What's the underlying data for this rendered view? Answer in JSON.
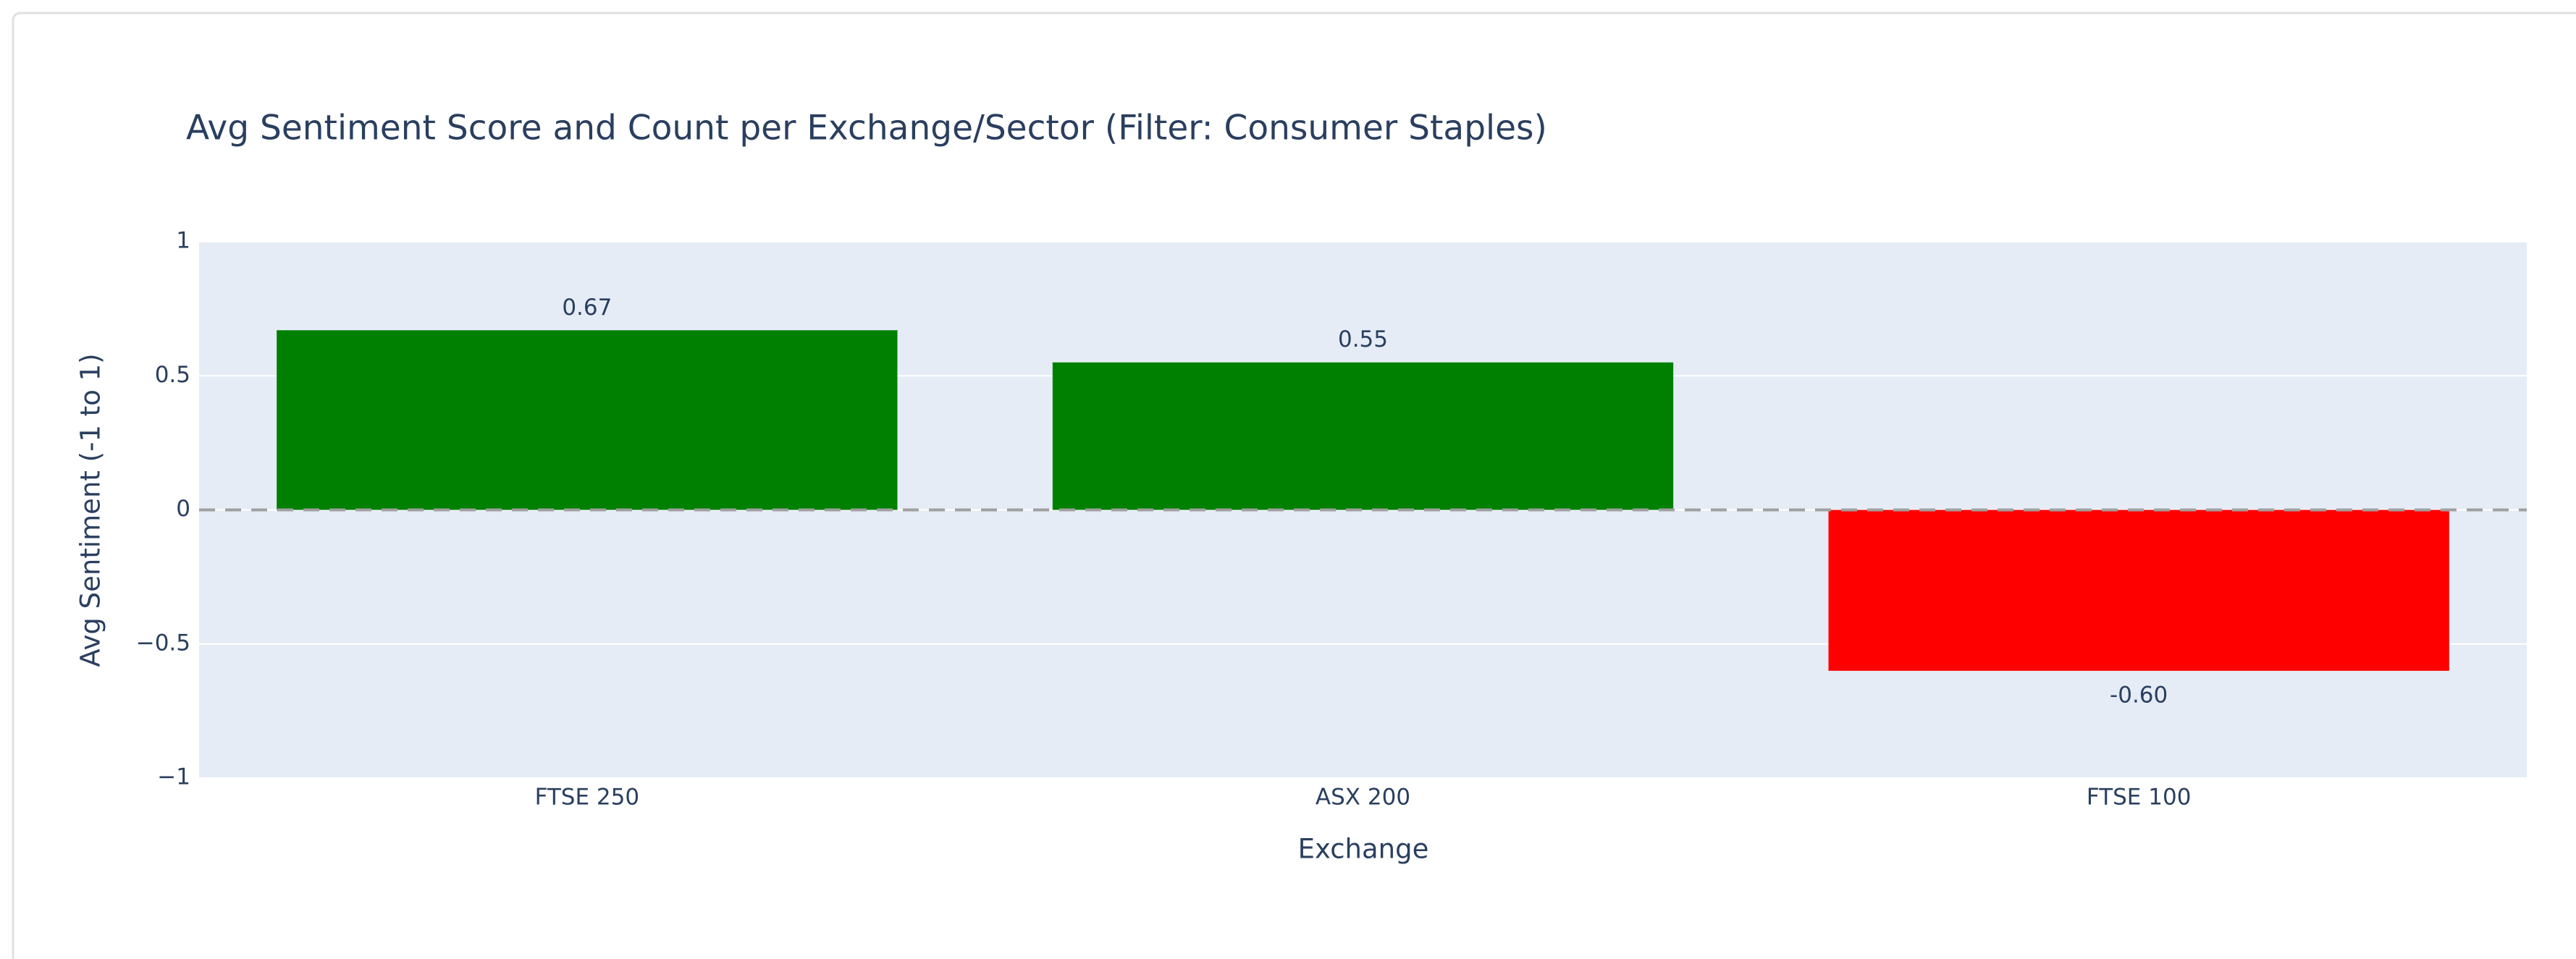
{
  "chart_data": {
    "type": "bar",
    "title": "Avg Sentiment Score and Count per Exchange/Sector (Filter: Consumer Staples)",
    "x_label": "Exchange",
    "y_label": "Avg Sentiment (-1 to 1)",
    "categories": [
      "FTSE 250",
      "ASX 200",
      "FTSE 100"
    ],
    "values": [
      0.67,
      0.55,
      -0.6
    ],
    "value_labels": [
      "0.67",
      "0.55",
      "-0.60"
    ],
    "colors": [
      "#008000",
      "#008000",
      "#ff0000"
    ],
    "ylim": [
      -1,
      1
    ],
    "yticks": [
      {
        "value": -1,
        "label": "−1"
      },
      {
        "value": -0.5,
        "label": "−0.5"
      },
      0,
      0.5,
      1
    ],
    "grid": true,
    "zero_line": true
  }
}
